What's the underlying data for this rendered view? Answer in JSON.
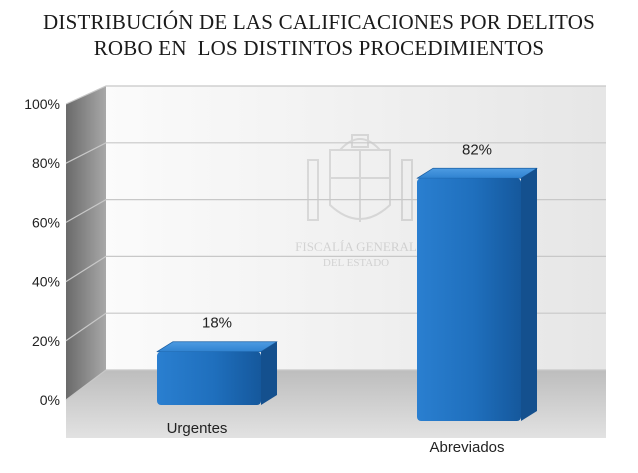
{
  "chart_data": {
    "type": "bar",
    "title_lines": [
      "DISTRIBUCIÓN DE LAS CALIFICACIONES POR DELITOS",
      "ROBO EN  LOS DISTINTOS PROCEDIMIENTOS"
    ],
    "categories": [
      "Urgentes",
      "Abreviados"
    ],
    "values": [
      18,
      82
    ],
    "data_labels": [
      "18%",
      "82%"
    ],
    "ylim": [
      0,
      100
    ],
    "yticks": [
      0,
      20,
      40,
      60,
      80,
      100
    ],
    "ytick_labels": [
      "0%",
      "20%",
      "40%",
      "60%",
      "80%",
      "100%"
    ],
    "xlabel": "",
    "ylabel": "",
    "grid": true,
    "legend": "none",
    "bar_color": "#1f6fbd",
    "watermark": {
      "lines": [
        "FISCALÍA GENERAL",
        "DEL ESTADO"
      ]
    }
  }
}
